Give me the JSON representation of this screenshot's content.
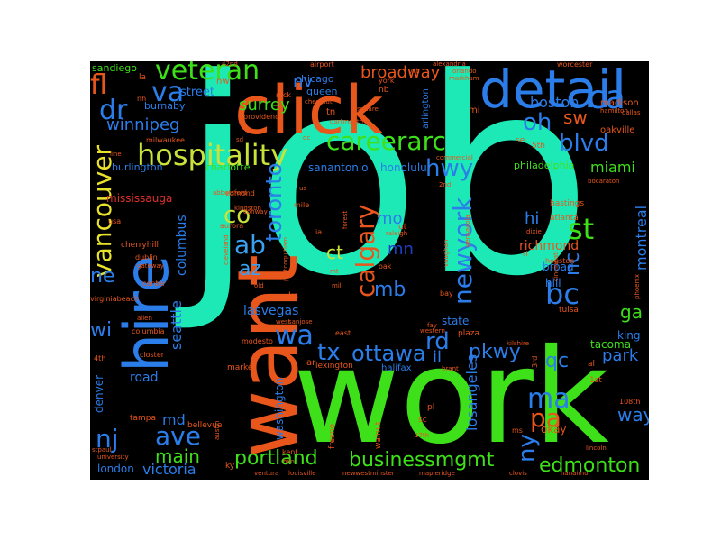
{
  "word_cloud": {
    "colors": {
      "background": "#000000",
      "teal": "#1de9b6",
      "green": "#3ee01a",
      "orange": "#e8561c",
      "blue": "#2b7de9",
      "light_blue": "#3aa0f0",
      "dark_blue": "#2040c8",
      "yellow_green": "#c9e23a",
      "yellow": "#e8e22a",
      "red": "#e0302a",
      "aqua": "#28d0d0"
    },
    "words": [
      {
        "text": "job",
        "color": "teal"
      },
      {
        "text": "work",
        "color": "green"
      },
      {
        "text": "want",
        "color": "orange"
      },
      {
        "text": "click",
        "color": "orange"
      },
      {
        "text": "detail",
        "color": "blue"
      },
      {
        "text": "hire",
        "color": "blue"
      },
      {
        "text": "hospitality",
        "color": "yellow_green"
      },
      {
        "text": "careerarc",
        "color": "green"
      },
      {
        "text": "veteran",
        "color": "green"
      },
      {
        "text": "portland",
        "color": "green"
      },
      {
        "text": "businessmgmt",
        "color": "green"
      },
      {
        "text": "edmonton",
        "color": "green"
      },
      {
        "text": "vancouver",
        "color": "yellow"
      },
      {
        "text": "newyork",
        "color": "blue"
      },
      {
        "text": "calgary",
        "color": "orange"
      },
      {
        "text": "toronto",
        "color": "blue"
      },
      {
        "text": "ottawa",
        "color": "blue"
      },
      {
        "text": "ca",
        "color": "blue"
      },
      {
        "text": "va",
        "color": "blue"
      },
      {
        "text": "fl",
        "color": "orange"
      },
      {
        "text": "dr",
        "color": "blue"
      },
      {
        "text": "wa",
        "color": "blue"
      },
      {
        "text": "tx",
        "color": "blue"
      },
      {
        "text": "ave",
        "color": "blue"
      },
      {
        "text": "nj",
        "color": "blue"
      },
      {
        "text": "main",
        "color": "green"
      },
      {
        "text": "co",
        "color": "yellow_green"
      },
      {
        "text": "ab",
        "color": "light_blue"
      },
      {
        "text": "az",
        "color": "light_blue"
      },
      {
        "text": "ma",
        "color": "blue"
      },
      {
        "text": "pa",
        "color": "orange"
      },
      {
        "text": "ny",
        "color": "blue"
      },
      {
        "text": "st",
        "color": "green"
      },
      {
        "text": "bc",
        "color": "blue"
      },
      {
        "text": "hwy",
        "color": "blue"
      },
      {
        "text": "rd",
        "color": "blue"
      },
      {
        "text": "blvd",
        "color": "blue"
      },
      {
        "text": "oh",
        "color": "blue"
      },
      {
        "text": "sw",
        "color": "orange"
      },
      {
        "text": "mo",
        "color": "blue"
      },
      {
        "text": "mn",
        "color": "dark_blue"
      },
      {
        "text": "ct",
        "color": "yellow_green"
      },
      {
        "text": "mb",
        "color": "blue"
      },
      {
        "text": "nc",
        "color": "blue"
      },
      {
        "text": "qc",
        "color": "blue"
      },
      {
        "text": "hi",
        "color": "blue"
      },
      {
        "text": "ga",
        "color": "green"
      },
      {
        "text": "ne",
        "color": "blue"
      },
      {
        "text": "wi",
        "color": "blue"
      },
      {
        "text": "il",
        "color": "blue"
      },
      {
        "text": "pkwy",
        "color": "blue"
      },
      {
        "text": "park",
        "color": "blue"
      },
      {
        "text": "way",
        "color": "blue"
      },
      {
        "text": "md",
        "color": "blue"
      },
      {
        "text": "boston",
        "color": "blue"
      },
      {
        "text": "broadway",
        "color": "orange"
      },
      {
        "text": "winnipeg",
        "color": "blue"
      },
      {
        "text": "victoria",
        "color": "blue"
      },
      {
        "text": "surrey",
        "color": "green"
      },
      {
        "text": "nv",
        "color": "blue"
      },
      {
        "text": "seattle",
        "color": "blue"
      },
      {
        "text": "columbus",
        "color": "blue"
      },
      {
        "text": "montreal",
        "color": "blue"
      },
      {
        "text": "miami",
        "color": "green"
      },
      {
        "text": "losangeles",
        "color": "blue"
      },
      {
        "text": "richmond",
        "color": "orange"
      },
      {
        "text": "london",
        "color": "blue"
      },
      {
        "text": "road",
        "color": "blue"
      },
      {
        "text": "denver",
        "color": "blue"
      },
      {
        "text": "tacoma",
        "color": "green"
      },
      {
        "text": "lasvegas",
        "color": "blue"
      },
      {
        "text": "sanantonio",
        "color": "blue"
      },
      {
        "text": "honolulu",
        "color": "blue"
      },
      {
        "text": "street",
        "color": "blue"
      },
      {
        "text": "sandiego",
        "color": "green"
      },
      {
        "text": "burnaby",
        "color": "blue"
      },
      {
        "text": "mississauga",
        "color": "red"
      },
      {
        "text": "charlotte",
        "color": "green"
      },
      {
        "text": "burlington",
        "color": "blue"
      },
      {
        "text": "philadelphia",
        "color": "green"
      },
      {
        "text": "washington",
        "color": "blue"
      },
      {
        "text": "queen",
        "color": "blue"
      },
      {
        "text": "chicago",
        "color": "blue"
      },
      {
        "text": "arlington",
        "color": "blue"
      },
      {
        "text": "broad",
        "color": "blue"
      },
      {
        "text": "hill",
        "color": "blue"
      },
      {
        "text": "king",
        "color": "blue"
      },
      {
        "text": "state",
        "color": "blue"
      },
      {
        "text": "okay",
        "color": "orange"
      },
      {
        "text": "madison",
        "color": "orange"
      },
      {
        "text": "oakville",
        "color": "orange"
      },
      {
        "text": "atlanta",
        "color": "orange"
      },
      {
        "text": "hastings",
        "color": "orange"
      },
      {
        "text": "houston",
        "color": "orange"
      },
      {
        "text": "tulsa",
        "color": "orange"
      },
      {
        "text": "lexington",
        "color": "orange"
      },
      {
        "text": "halifax",
        "color": "blue"
      },
      {
        "text": "kent",
        "color": "orange"
      },
      {
        "text": "walnut",
        "color": "orange"
      },
      {
        "text": "fresno",
        "color": "orange"
      },
      {
        "text": "bellevue",
        "color": "orange"
      },
      {
        "text": "tampa",
        "color": "orange"
      },
      {
        "text": "market",
        "color": "orange"
      },
      {
        "text": "closter",
        "color": "orange"
      },
      {
        "text": "modesto",
        "color": "orange"
      },
      {
        "text": "columbia",
        "color": "orange"
      },
      {
        "text": "virginiabeach",
        "color": "orange"
      },
      {
        "text": "cherryhill",
        "color": "orange"
      },
      {
        "text": "dublin",
        "color": "orange"
      },
      {
        "text": "aurora",
        "color": "orange"
      },
      {
        "text": "edmond",
        "color": "orange"
      },
      {
        "text": "abbotsford",
        "color": "orange"
      },
      {
        "text": "gateway",
        "color": "orange"
      },
      {
        "text": "center",
        "color": "orange"
      },
      {
        "text": "usa",
        "color": "orange"
      },
      {
        "text": "stpaul",
        "color": "orange"
      },
      {
        "text": "austin",
        "color": "orange"
      },
      {
        "text": "university",
        "color": "orange"
      },
      {
        "text": "ky",
        "color": "orange"
      },
      {
        "text": "ventura",
        "color": "orange"
      },
      {
        "text": "louisville",
        "color": "orange"
      },
      {
        "text": "newwestminster",
        "color": "orange"
      },
      {
        "text": "mapleridge",
        "color": "orange"
      },
      {
        "text": "clovis",
        "color": "orange"
      },
      {
        "text": "nanaimo",
        "color": "orange"
      },
      {
        "text": "lincoln",
        "color": "orange"
      },
      {
        "text": "108th",
        "color": "orange"
      },
      {
        "text": "1st",
        "color": "orange"
      },
      {
        "text": "2nd",
        "color": "orange"
      },
      {
        "text": "3rd",
        "color": "orange"
      },
      {
        "text": "4th",
        "color": "orange"
      },
      {
        "text": "5th",
        "color": "orange"
      },
      {
        "text": "17th",
        "color": "orange"
      },
      {
        "text": "al",
        "color": "orange"
      },
      {
        "text": "ms",
        "color": "orange"
      },
      {
        "text": "sc",
        "color": "orange"
      },
      {
        "text": "se",
        "color": "orange"
      },
      {
        "text": "pl",
        "color": "orange"
      },
      {
        "text": "ar",
        "color": "orange"
      },
      {
        "text": "ks",
        "color": "orange"
      },
      {
        "text": "la",
        "color": "orange"
      },
      {
        "text": "nw",
        "color": "orange"
      },
      {
        "text": "nb",
        "color": "orange"
      },
      {
        "text": "mi",
        "color": "orange"
      },
      {
        "text": "tn",
        "color": "orange"
      },
      {
        "text": "ri",
        "color": "orange"
      },
      {
        "text": "ut",
        "color": "orange"
      },
      {
        "text": "ia",
        "color": "orange"
      },
      {
        "text": "mt",
        "color": "orange"
      },
      {
        "text": "nh",
        "color": "orange"
      },
      {
        "text": "sd",
        "color": "orange"
      },
      {
        "text": "dc",
        "color": "orange"
      },
      {
        "text": "us",
        "color": "orange"
      },
      {
        "text": "oak",
        "color": "orange"
      },
      {
        "text": "bay",
        "color": "orange"
      },
      {
        "text": "fay",
        "color": "orange"
      },
      {
        "text": "old",
        "color": "orange"
      },
      {
        "text": "mill",
        "color": "orange"
      },
      {
        "text": "mile",
        "color": "orange"
      },
      {
        "text": "east",
        "color": "orange"
      },
      {
        "text": "west",
        "color": "orange"
      },
      {
        "text": "line",
        "color": "orange"
      },
      {
        "text": "york",
        "color": "orange"
      },
      {
        "text": "rock",
        "color": "orange"
      },
      {
        "text": "plaza",
        "color": "orange"
      },
      {
        "text": "allen",
        "color": "orange"
      },
      {
        "text": "brant",
        "color": "orange"
      },
      {
        "text": "dixie",
        "color": "orange"
      },
      {
        "text": "hilo",
        "color": "orange"
      },
      {
        "text": "raleigh",
        "color": "orange"
      },
      {
        "text": "vaughan",
        "color": "orange"
      },
      {
        "text": "pensacola",
        "color": "orange"
      },
      {
        "text": "cincinnati",
        "color": "orange"
      },
      {
        "text": "kilshire",
        "color": "orange"
      },
      {
        "text": "western",
        "color": "orange"
      },
      {
        "text": "sanjose",
        "color": "orange"
      },
      {
        "text": "commercial",
        "color": "orange"
      },
      {
        "text": "bocaraton",
        "color": "orange"
      },
      {
        "text": "hamilton",
        "color": "orange"
      },
      {
        "text": "dallas",
        "color": "orange"
      },
      {
        "text": "phoenix",
        "color": "orange"
      },
      {
        "text": "worcester",
        "color": "orange"
      },
      {
        "text": "orlando",
        "color": "orange"
      },
      {
        "text": "markham",
        "color": "orange"
      },
      {
        "text": "alexandria",
        "color": "orange"
      },
      {
        "text": "airport",
        "color": "orange"
      },
      {
        "text": "chestnut",
        "color": "orange"
      },
      {
        "text": "dartmouth",
        "color": "orange"
      },
      {
        "text": "providence",
        "color": "orange"
      },
      {
        "text": "milwaukee",
        "color": "orange"
      },
      {
        "text": "kingston",
        "color": "orange"
      },
      {
        "text": "conway",
        "color": "orange"
      },
      {
        "text": "cleveland",
        "color": "orange"
      },
      {
        "text": "portcoquitlam",
        "color": "orange"
      },
      {
        "text": "square",
        "color": "orange"
      },
      {
        "text": "forest",
        "color": "orange"
      },
      {
        "text": "42nd",
        "color": "orange"
      },
      {
        "text": "7th",
        "color": "orange"
      }
    ]
  }
}
